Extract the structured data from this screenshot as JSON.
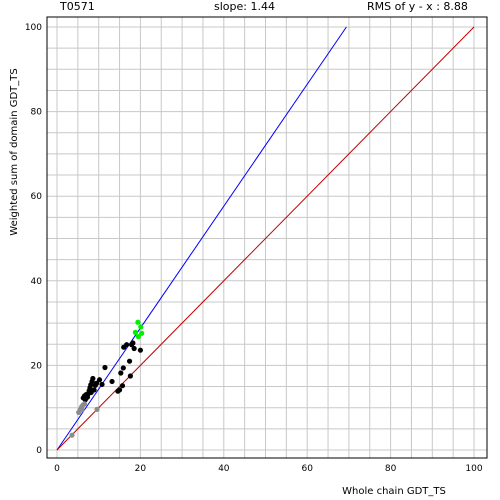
{
  "header": {
    "id": "T0571",
    "slope": "slope: 1.44",
    "rms": "RMS of  y - x : 8.88"
  },
  "chart_data": {
    "type": "scatter",
    "title": "",
    "xlabel": "Whole chain GDT_TS",
    "ylabel": "Weighted sum of domain GDT_TS",
    "xlim": [
      0,
      100
    ],
    "ylim": [
      0,
      100
    ],
    "grid": true,
    "x_ticks": [
      "0",
      "20",
      "40",
      "60",
      "80",
      "100"
    ],
    "y_ticks": [
      "0",
      "20",
      "40",
      "60",
      "80",
      "100"
    ],
    "lines": [
      {
        "name": "slope line",
        "color": "#0000ff",
        "points": [
          [
            0,
            0
          ],
          [
            69.4,
            100
          ]
        ]
      },
      {
        "name": "diagonal",
        "color": "#c00000",
        "points": [
          [
            0,
            0
          ],
          [
            100,
            100
          ]
        ]
      }
    ],
    "series": [
      {
        "color": "#000000",
        "points": [
          [
            6.3,
            12.3
          ],
          [
            6.6,
            12.8
          ],
          [
            6.8,
            11.9
          ],
          [
            7.0,
            13.1
          ],
          [
            7.3,
            12.5
          ],
          [
            7.5,
            13.3
          ],
          [
            7.7,
            14.0
          ],
          [
            7.9,
            14.7
          ],
          [
            8.1,
            15.4
          ],
          [
            8.2,
            13.6
          ],
          [
            8.4,
            16.2
          ],
          [
            8.6,
            16.9
          ],
          [
            8.9,
            14.2
          ],
          [
            9.2,
            15.3
          ],
          [
            9.5,
            15.8
          ],
          [
            10.2,
            16.6
          ],
          [
            10.8,
            15.5
          ],
          [
            11.5,
            19.5
          ],
          [
            13.2,
            16.2
          ],
          [
            14.6,
            13.9
          ],
          [
            15.0,
            14.2
          ],
          [
            15.3,
            18.2
          ],
          [
            15.7,
            15.2
          ],
          [
            15.9,
            19.4
          ],
          [
            16.0,
            24.3
          ],
          [
            16.7,
            24.9
          ],
          [
            17.4,
            21.0
          ],
          [
            17.6,
            17.5
          ],
          [
            17.9,
            24.9
          ],
          [
            18.2,
            25.3
          ],
          [
            18.5,
            24.0
          ],
          [
            20.0,
            23.6
          ]
        ]
      },
      {
        "color": "#8c8c8c",
        "points": [
          [
            3.6,
            3.5
          ],
          [
            5.2,
            8.9
          ],
          [
            5.6,
            9.6
          ],
          [
            5.9,
            10.2
          ],
          [
            6.2,
            10.6
          ],
          [
            6.6,
            10.9
          ],
          [
            6.0,
            9.5
          ],
          [
            9.6,
            9.6
          ]
        ]
      },
      {
        "color": "#00ee00",
        "points": [
          [
            18.8,
            27.8
          ],
          [
            19.4,
            30.2
          ],
          [
            19.5,
            26.8
          ],
          [
            20.1,
            29.1
          ],
          [
            20.3,
            27.6
          ]
        ]
      }
    ]
  }
}
